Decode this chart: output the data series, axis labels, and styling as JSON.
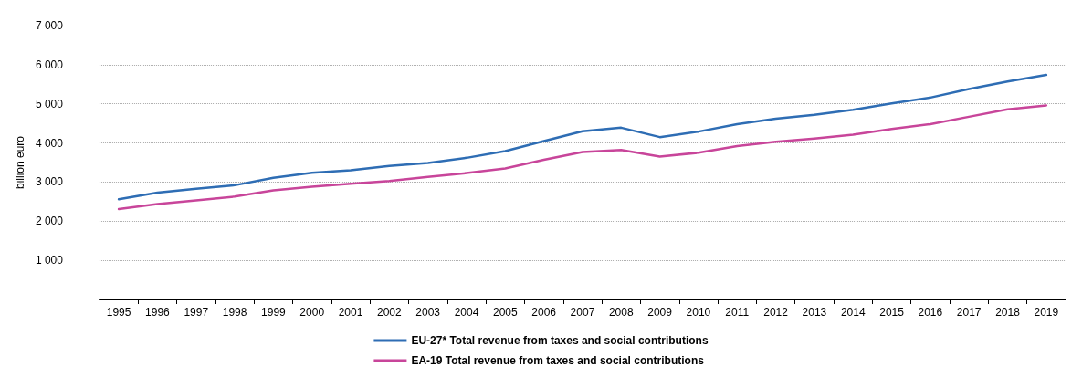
{
  "chart_data": {
    "type": "line",
    "ylabel": "billion euro",
    "categories": [
      "1995",
      "1996",
      "1997",
      "1998",
      "1999",
      "2000",
      "2001",
      "2002",
      "2003",
      "2004",
      "2005",
      "2006",
      "2007",
      "2008",
      "2009",
      "2010",
      "2011",
      "2012",
      "2013",
      "2014",
      "2015",
      "2016",
      "2017",
      "2018",
      "2019"
    ],
    "series": [
      {
        "name": "EU-27* Total revenue from taxes and social contributions",
        "color": "#2e6db4",
        "values": [
          2560,
          2730,
          2830,
          2920,
          3110,
          3240,
          3300,
          3410,
          3490,
          3620,
          3790,
          4050,
          4300,
          4390,
          4150,
          4290,
          4480,
          4620,
          4720,
          4850,
          5010,
          5160,
          5380,
          5570,
          5740
        ]
      },
      {
        "name": "EA-19 Total revenue from taxes and social contributions",
        "color": "#c8459a",
        "values": [
          2310,
          2440,
          2530,
          2630,
          2790,
          2880,
          2960,
          3030,
          3130,
          3230,
          3350,
          3570,
          3770,
          3820,
          3650,
          3750,
          3920,
          4030,
          4110,
          4210,
          4360,
          4480,
          4670,
          4860,
          4960
        ]
      }
    ],
    "ylim": [
      0,
      7000
    ],
    "yticks": [
      {
        "value": 0,
        "label": null
      },
      {
        "value": 1000,
        "label": "1 000"
      },
      {
        "value": 2000,
        "label": "2 000"
      },
      {
        "value": 3000,
        "label": "3 000"
      },
      {
        "value": 4000,
        "label": "4 000"
      },
      {
        "value": 5000,
        "label": "5 000"
      },
      {
        "value": 6000,
        "label": "6 000"
      },
      {
        "value": 7000,
        "label": "7 000"
      }
    ],
    "grid": "y",
    "legend": "bottom",
    "marker": "none",
    "line_style": "solid"
  }
}
